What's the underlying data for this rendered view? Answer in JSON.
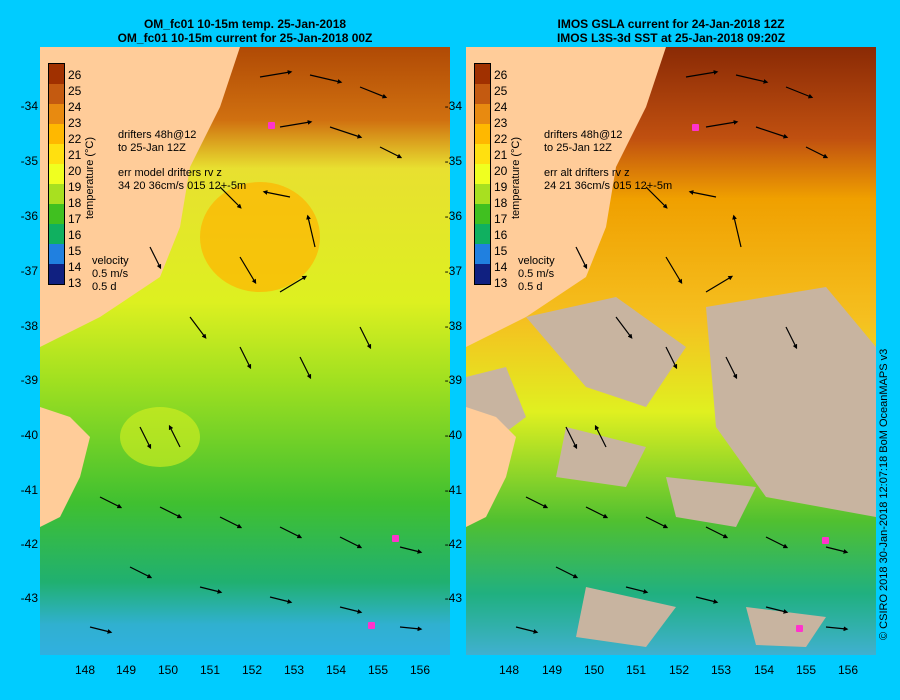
{
  "left_panel": {
    "title_line1": "OM_fc01 10-15m temp. 25-Jan-2018",
    "title_line2": "OM_fc01 10-15m current for 25-Jan-2018 00Z",
    "drifter_line1": "drifters 48h@12",
    "drifter_line2": "to 25-Jan 12Z",
    "err_line1": "err model drifters rv z",
    "err_line2": "34 20 36cm/s 015 12+-5m",
    "velocity_label": "velocity",
    "velocity_scale1": "0.5 m/s",
    "velocity_scale2": "0.5 d"
  },
  "right_panel": {
    "title_line1": "IMOS GSLA current for 24-Jan-2018 12Z",
    "title_line2": "IMOS L3S-3d SST at 25-Jan-2018 09:20Z",
    "drifter_line1": "drifters 48h@12",
    "drifter_line2": "to 25-Jan 12Z",
    "err_line1": "err alt drifters rv z",
    "err_line2": "24 21 36cm/s 015 12+-5m",
    "velocity_label": "velocity",
    "velocity_scale1": "0.5 m/s",
    "velocity_scale2": "0.5 d"
  },
  "colorbar": {
    "title": "temperature (°C)",
    "labels": [
      "26",
      "25",
      "24",
      "23",
      "22",
      "21",
      "20",
      "19",
      "18",
      "17",
      "16",
      "15",
      "14",
      "13"
    ],
    "colors": [
      "#a03000",
      "#c45a10",
      "#e88a10",
      "#ffb800",
      "#ffe010",
      "#f0ff20",
      "#a8e020",
      "#40c020",
      "#10b060",
      "#10a0a0",
      "#2080e0",
      "#1040c0",
      "#102080"
    ]
  },
  "latitudes": [
    "-34",
    "-35",
    "-36",
    "-37",
    "-38",
    "-39",
    "-40",
    "-41",
    "-42",
    "-43"
  ],
  "longitudes": [
    "148",
    "149",
    "150",
    "151",
    "152",
    "153",
    "154",
    "155",
    "156"
  ],
  "credit": "© CSIRO 2018   30-Jan-2018 12:07:18 BoM OceanMAPS v3",
  "colors": {
    "background": "#00ccff",
    "land": "#ffcc99",
    "cloud": "#c8b4a0"
  }
}
